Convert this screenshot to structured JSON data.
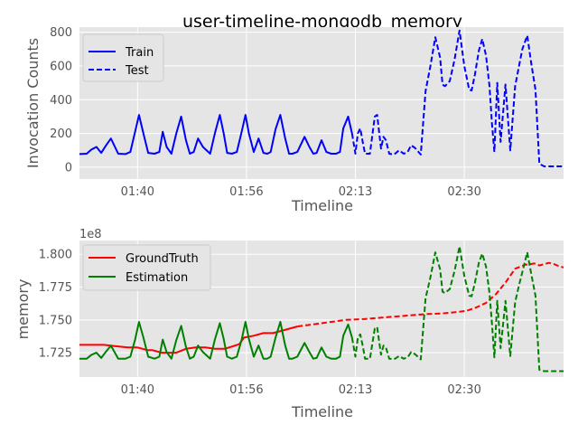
{
  "chart_data": [
    {
      "type": "line",
      "title": "user-timeline-mongodb_memory",
      "xlabel": "Timeline",
      "ylabel": "Invocation Counts",
      "xticks": [
        "01:40",
        "01:56",
        "02:13",
        "02:30"
      ],
      "yticks": [
        "0",
        "200",
        "400",
        "600",
        "800"
      ],
      "xlim": [
        0,
        100
      ],
      "ylim": [
        -70,
        830
      ],
      "grid": true,
      "legend": "top-left",
      "series": [
        {
          "name": "Train",
          "color": "#0000ff",
          "dash": "solid",
          "x": [
            0,
            1.5,
            2.5,
            3.5,
            4.5,
            5.5,
            6.5,
            8,
            9.5,
            10.5,
            11.5,
            12.3,
            13.2,
            14.2,
            15.5,
            16.5,
            17.2,
            18,
            19,
            20,
            21,
            22,
            22.8,
            23.6,
            24.5,
            25.5,
            27,
            28,
            29,
            29.8,
            30.5,
            31.5,
            32.5,
            33.5,
            34.3,
            35,
            36,
            37,
            38,
            38.8,
            39.5,
            40.5,
            41.5,
            42.5,
            43.3,
            44,
            45,
            46.5,
            47.5,
            48.3,
            49,
            50,
            51,
            52,
            53,
            53.8,
            54.5,
            55.5,
            56.3
          ],
          "y": [
            78,
            80,
            105,
            120,
            85,
            130,
            170,
            80,
            78,
            90,
            210,
            310,
            200,
            85,
            80,
            90,
            210,
            120,
            80,
            200,
            300,
            160,
            80,
            90,
            170,
            120,
            80,
            205,
            310,
            200,
            85,
            80,
            90,
            210,
            310,
            200,
            90,
            170,
            85,
            80,
            90,
            225,
            310,
            170,
            80,
            80,
            90,
            180,
            120,
            80,
            85,
            160,
            90,
            80,
            80,
            90,
            230,
            300,
            200
          ]
        },
        {
          "name": "Test",
          "color": "#0000ff",
          "dash": "dashed",
          "x": [
            56.3,
            57,
            57.5,
            58,
            58.5,
            59,
            60,
            61,
            61.5,
            62.3,
            62.8,
            63.3,
            64,
            65,
            66,
            67,
            67.8,
            68.5,
            69.3,
            70.5,
            71.5,
            72.5,
            73.5,
            74.5,
            75,
            75.5,
            76.5,
            77.5,
            78.5,
            79.5,
            80.5,
            81,
            81.7,
            82.5,
            83.2,
            84,
            84.7,
            85.2,
            85.7,
            86.3,
            87,
            88,
            89,
            90,
            90.8,
            91.5,
            92.5,
            93.3,
            94.2,
            95,
            96,
            97,
            98,
            99,
            100
          ],
          "y": [
            200,
            80,
            200,
            230,
            150,
            80,
            80,
            300,
            310,
            110,
            180,
            160,
            80,
            75,
            100,
            80,
            90,
            130,
            115,
            75,
            450,
            600,
            770,
            650,
            490,
            480,
            510,
            640,
            810,
            600,
            460,
            455,
            550,
            690,
            760,
            660,
            480,
            260,
            90,
            500,
            150,
            490,
            100,
            480,
            600,
            700,
            780,
            620,
            460,
            20,
            5,
            5,
            5,
            5,
            5
          ]
        }
      ]
    },
    {
      "type": "line",
      "title": "",
      "xlabel": "Timeline",
      "ylabel": "memory",
      "offset_label": "1e8",
      "xticks": [
        "01:40",
        "01:56",
        "02:13",
        "02:30"
      ],
      "yticks": [
        "1.725",
        "1.750",
        "1.775",
        "1.800"
      ],
      "xlim": [
        0,
        100
      ],
      "ylim": [
        1.7065,
        1.8105
      ],
      "grid": true,
      "legend": "top-left",
      "series": [
        {
          "name": "GroundTruth",
          "color": "#ff0000",
          "dash": "solid",
          "x": [
            0,
            5,
            10,
            12,
            14,
            15,
            17,
            20,
            22,
            24,
            25,
            26,
            28,
            30,
            33,
            34,
            36,
            38,
            40,
            42,
            45
          ],
          "y": [
            1.731,
            1.731,
            1.729,
            1.729,
            1.727,
            1.727,
            1.725,
            1.725,
            1.728,
            1.729,
            1.729,
            1.729,
            1.728,
            1.728,
            1.7315,
            1.7365,
            1.738,
            1.74,
            1.74,
            1.742,
            1.745
          ]
        },
        {
          "name": "",
          "color": "#ff0000",
          "dash": "dashed",
          "x": [
            45,
            50,
            55,
            58,
            60,
            65,
            70,
            72,
            75,
            78,
            80,
            82,
            84,
            86,
            88,
            90,
            92,
            94,
            95,
            96,
            97,
            98,
            99,
            100
          ],
          "y": [
            1.745,
            1.7475,
            1.75,
            1.7505,
            1.751,
            1.7525,
            1.754,
            1.7545,
            1.755,
            1.756,
            1.757,
            1.7595,
            1.763,
            1.7695,
            1.7785,
            1.789,
            1.792,
            1.793,
            1.7915,
            1.7925,
            1.7935,
            1.7925,
            1.791,
            1.79
          ]
        },
        {
          "name": "Estimation",
          "color": "#008000",
          "dash": "solid",
          "x": [
            0,
            1.5,
            2.5,
            3.5,
            4.5,
            5.5,
            6.5,
            8,
            9.5,
            10.5,
            11.5,
            12.3,
            13.2,
            14.2,
            15.5,
            16.5,
            17.2,
            18,
            19,
            20,
            21,
            22,
            22.8,
            23.6,
            24.5,
            25.5,
            27,
            28,
            29,
            29.8,
            30.5,
            31.5,
            32.5,
            33.5,
            34.3,
            35,
            36,
            37,
            38,
            38.8,
            39.5,
            40.5,
            41.5,
            42.5,
            43.3,
            44,
            45,
            46.5,
            47.5,
            48.3,
            49,
            50,
            51,
            52,
            53,
            53.8,
            54.5,
            55.5,
            56.3
          ],
          "y": [
            1.7205,
            1.7205,
            1.7235,
            1.725,
            1.721,
            1.726,
            1.7305,
            1.7205,
            1.7205,
            1.722,
            1.735,
            1.7485,
            1.7365,
            1.722,
            1.7205,
            1.722,
            1.735,
            1.7255,
            1.7205,
            1.7345,
            1.7455,
            1.7295,
            1.7205,
            1.722,
            1.7305,
            1.7255,
            1.7205,
            1.7355,
            1.7475,
            1.7355,
            1.722,
            1.7205,
            1.722,
            1.735,
            1.7485,
            1.7355,
            1.722,
            1.7305,
            1.7205,
            1.7205,
            1.722,
            1.7365,
            1.7485,
            1.7305,
            1.7205,
            1.7205,
            1.722,
            1.7325,
            1.7255,
            1.7205,
            1.721,
            1.729,
            1.722,
            1.7205,
            1.7205,
            1.722,
            1.738,
            1.7465,
            1.7365
          ]
        },
        {
          "name": "",
          "color": "#008000",
          "dash": "dashed",
          "x": [
            56.3,
            57,
            57.5,
            58,
            58.5,
            59,
            60,
            61,
            61.5,
            62.3,
            62.8,
            63.3,
            64,
            65,
            66,
            67,
            67.8,
            68.5,
            69.3,
            70.5,
            71.5,
            72.5,
            73.5,
            74.5,
            75,
            75.5,
            76.5,
            77.5,
            78.5,
            79.5,
            80.5,
            81,
            81.7,
            82.5,
            83.2,
            84,
            84.7,
            85.2,
            85.7,
            86.3,
            87,
            88,
            89,
            90,
            90.8,
            91.5,
            92.5,
            93.3,
            94.2,
            95,
            96,
            97,
            98,
            99,
            100
          ],
          "y": [
            1.7365,
            1.722,
            1.7365,
            1.739,
            1.7305,
            1.7205,
            1.7205,
            1.7435,
            1.7445,
            1.7235,
            1.7305,
            1.729,
            1.7205,
            1.72,
            1.7225,
            1.7205,
            1.7215,
            1.7255,
            1.724,
            1.72,
            1.7665,
            1.7825,
            1.8015,
            1.7885,
            1.7715,
            1.7705,
            1.7735,
            1.7875,
            1.806,
            1.7835,
            1.7685,
            1.768,
            1.7785,
            1.7935,
            1.8005,
            1.7905,
            1.7705,
            1.7475,
            1.7215,
            1.7645,
            1.7285,
            1.7645,
            1.7225,
            1.7635,
            1.7765,
            1.7865,
            1.8015,
            1.7855,
            1.7685,
            1.712,
            1.711,
            1.711,
            1.711,
            1.711,
            1.711
          ]
        }
      ]
    }
  ]
}
